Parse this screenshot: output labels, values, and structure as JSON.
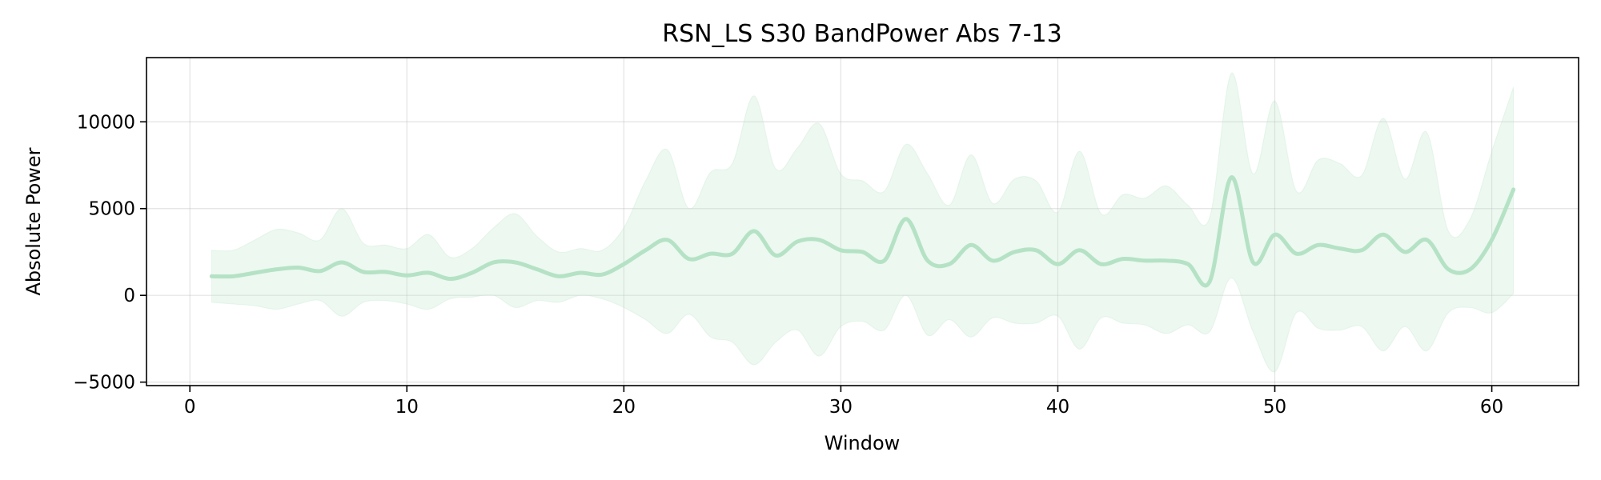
{
  "chart_data": {
    "type": "line",
    "title": "RSN_LS S30 BandPower Abs 7-13",
    "xlabel": "Window",
    "ylabel": "Absolute Power",
    "xlim": [
      -2,
      64
    ],
    "ylim": [
      -5200,
      13700
    ],
    "xticks": [
      0,
      10,
      20,
      30,
      40,
      50,
      60
    ],
    "yticks": [
      -5000,
      0,
      5000,
      10000
    ],
    "ytick_labels": [
      "−5000",
      "0",
      "5000",
      "10000"
    ],
    "grid": true,
    "line_color": "#b5e2c5",
    "band_color": "#b5e2c5",
    "series": [
      {
        "x": [
          1,
          2,
          3,
          4,
          5,
          6,
          7,
          8,
          9,
          10,
          11,
          12,
          13,
          14,
          15,
          16,
          17,
          18,
          19,
          20,
          21,
          22,
          23,
          24,
          25,
          26,
          27,
          28,
          29,
          30,
          31,
          32,
          33,
          34,
          35,
          36,
          37,
          38,
          39,
          40,
          41,
          42,
          43,
          44,
          45,
          46,
          47,
          48,
          49,
          50,
          51,
          52,
          53,
          54,
          55,
          56,
          57,
          58,
          59,
          60,
          61
        ],
        "mean": [
          1100,
          1100,
          1300,
          1500,
          1600,
          1400,
          1900,
          1350,
          1350,
          1150,
          1300,
          950,
          1300,
          1900,
          1900,
          1500,
          1100,
          1300,
          1200,
          1800,
          2600,
          3200,
          2100,
          2400,
          2400,
          3700,
          2300,
          3100,
          3200,
          2600,
          2500,
          2000,
          4400,
          2000,
          1800,
          2900,
          2000,
          2500,
          2600,
          1800,
          2600,
          1800,
          2100,
          2000,
          2000,
          1800,
          800,
          6800,
          1900,
          3500,
          2400,
          2900,
          2700,
          2600,
          3500,
          2500,
          3200,
          1500,
          1500,
          3200,
          6100
        ],
        "upper": [
          2600,
          2600,
          3200,
          3800,
          3600,
          3200,
          5000,
          3000,
          2900,
          2700,
          3500,
          2200,
          2700,
          3900,
          4700,
          3400,
          2500,
          2700,
          2600,
          3900,
          6600,
          8400,
          5000,
          7100,
          7600,
          11500,
          7300,
          8500,
          9900,
          7000,
          6600,
          6000,
          8700,
          7000,
          5200,
          8100,
          5300,
          6700,
          6600,
          4800,
          8300,
          4700,
          5800,
          5600,
          6300,
          5200,
          4500,
          12800,
          7000,
          11200,
          6000,
          7800,
          7600,
          6900,
          10200,
          6700,
          9400,
          3700,
          4400,
          8300,
          12000
        ],
        "lower": [
          -400,
          -500,
          -600,
          -800,
          -500,
          -300,
          -1200,
          -400,
          -300,
          -500,
          -800,
          -200,
          -100,
          0,
          -700,
          -300,
          -400,
          0,
          -200,
          -700,
          -1400,
          -2200,
          -1100,
          -2400,
          -2700,
          -4000,
          -2700,
          -2000,
          -3500,
          -1800,
          -1500,
          -2000,
          0,
          -2300,
          -1400,
          -2400,
          -1300,
          -1600,
          -1600,
          -1200,
          -3100,
          -1300,
          -1600,
          -1700,
          -2200,
          -1700,
          -2100,
          1000,
          -2100,
          -4400,
          -1000,
          -1900,
          -2000,
          -1800,
          -3200,
          -1800,
          -3200,
          -1000,
          -700,
          -1000,
          100
        ]
      }
    ]
  }
}
